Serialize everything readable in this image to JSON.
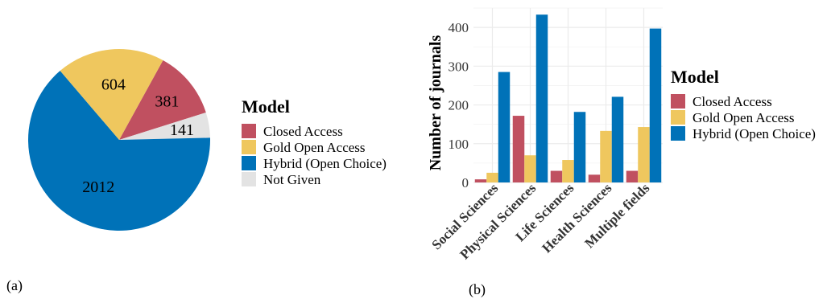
{
  "colors": {
    "closed": "#c05060",
    "gold": "#efc75e",
    "hybrid": "#0072b8",
    "notgiven": "#e3e3e3",
    "grid": "#ebebeb"
  },
  "panels": {
    "a": "(a)",
    "b": "(b)"
  },
  "chart_data": [
    {
      "type": "pie",
      "legend_title": "Model",
      "legend_placement": "right",
      "slices": [
        {
          "name": "Closed Access",
          "value": 381,
          "label": "381",
          "color": "#c05060"
        },
        {
          "name": "Not Given",
          "value": 141,
          "label": "141",
          "color": "#e3e3e3"
        },
        {
          "name": "Hybrid (Open Choice)",
          "value": 2012,
          "label": "2012",
          "color": "#0072b8"
        },
        {
          "name": "Gold Open Access",
          "value": 604,
          "label": "604",
          "color": "#efc75e"
        }
      ],
      "legend": [
        "Closed Access",
        "Gold Open Access",
        "Hybrid (Open Choice)",
        "Not Given"
      ]
    },
    {
      "type": "bar",
      "ylabel": "Number of journals",
      "xlabel": "",
      "ylim": [
        0,
        450
      ],
      "yticks": [
        0,
        100,
        200,
        300,
        400
      ],
      "grid": true,
      "legend_title": "Model",
      "legend_placement": "right",
      "categories": [
        "Social Sciences",
        "Physical Sciences",
        "Life Sciences",
        "Health Sciences",
        "Multiple fields"
      ],
      "series": [
        {
          "name": "Closed Access",
          "color": "#c05060",
          "values": [
            8,
            172,
            30,
            20,
            30
          ]
        },
        {
          "name": "Gold Open Access",
          "color": "#efc75e",
          "values": [
            25,
            70,
            58,
            133,
            143
          ]
        },
        {
          "name": "Hybrid (Open Choice)",
          "color": "#0072b8",
          "values": [
            285,
            433,
            182,
            221,
            397
          ]
        }
      ]
    }
  ]
}
